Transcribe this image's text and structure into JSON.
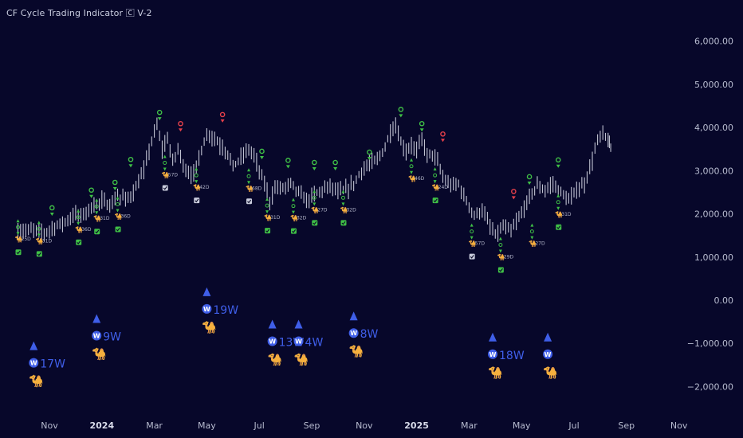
{
  "title": "CF Cycle Trading Indicator 🄲 V-2",
  "colors": {
    "background": "#07072a",
    "price": "#d6d8e6",
    "buy": "#3fbf46",
    "sell": "#e6404a",
    "week": "#3f5ee8",
    "axis_text": "#b8bcd0"
  },
  "chart_data": {
    "type": "line",
    "ylim": [
      -2600,
      6400
    ],
    "y_ticks": [
      {
        "value": 6000,
        "label": "6,000.00"
      },
      {
        "value": 5000,
        "label": "5,000.00"
      },
      {
        "value": 4000,
        "label": "4,000.00"
      },
      {
        "value": 3000,
        "label": "3,000.00"
      },
      {
        "value": 2000,
        "label": "2,000.00"
      },
      {
        "value": 1000,
        "label": "1,000.00"
      },
      {
        "value": 0,
        "label": "0.00"
      },
      {
        "value": -1000,
        "label": "−1,000.00"
      },
      {
        "value": -2000,
        "label": "−2,000.00"
      }
    ],
    "x_ticks": [
      {
        "t": 0,
        "label": "Nov",
        "bold": false
      },
      {
        "t": 2,
        "label": "2024",
        "bold": true
      },
      {
        "t": 4,
        "label": "Mar",
        "bold": false
      },
      {
        "t": 6,
        "label": "May",
        "bold": false
      },
      {
        "t": 8,
        "label": "Jul",
        "bold": false
      },
      {
        "t": 10,
        "label": "Sep",
        "bold": false
      },
      {
        "t": 12,
        "label": "Nov",
        "bold": false
      },
      {
        "t": 14,
        "label": "2025",
        "bold": true
      },
      {
        "t": 16,
        "label": "Mar",
        "bold": false
      },
      {
        "t": 18,
        "label": "May",
        "bold": false
      },
      {
        "t": 20,
        "label": "Jul",
        "bold": false
      },
      {
        "t": 22,
        "label": "Sep",
        "bold": false
      },
      {
        "t": 24,
        "label": "Nov",
        "bold": false
      }
    ],
    "price": [
      [
        -1.2,
        1600
      ],
      [
        -0.6,
        1630
      ],
      [
        -0.2,
        1560
      ],
      [
        0.2,
        1700
      ],
      [
        0.6,
        1820
      ],
      [
        1.0,
        2000
      ],
      [
        1.2,
        1950
      ],
      [
        1.6,
        2150
      ],
      [
        2.0,
        2300
      ],
      [
        2.3,
        2200
      ],
      [
        2.6,
        2400
      ],
      [
        3.0,
        2350
      ],
      [
        3.3,
        2600
      ],
      [
        3.6,
        3000
      ],
      [
        3.9,
        3700
      ],
      [
        4.1,
        4050
      ],
      [
        4.3,
        3500
      ],
      [
        4.5,
        3750
      ],
      [
        4.7,
        3200
      ],
      [
        4.9,
        3500
      ],
      [
        5.2,
        3000
      ],
      [
        5.5,
        2900
      ],
      [
        5.7,
        3300
      ],
      [
        5.9,
        3700
      ],
      [
        6.1,
        3850
      ],
      [
        6.3,
        3750
      ],
      [
        6.5,
        3600
      ],
      [
        6.8,
        3400
      ],
      [
        7.0,
        3100
      ],
      [
        7.3,
        3300
      ],
      [
        7.6,
        3500
      ],
      [
        7.8,
        3350
      ],
      [
        8.0,
        3000
      ],
      [
        8.2,
        2700
      ],
      [
        8.4,
        2300
      ],
      [
        8.6,
        2600
      ],
      [
        8.9,
        2600
      ],
      [
        9.2,
        2700
      ],
      [
        9.5,
        2500
      ],
      [
        9.8,
        2300
      ],
      [
        10.1,
        2450
      ],
      [
        10.4,
        2550
      ],
      [
        10.7,
        2650
      ],
      [
        11.0,
        2500
      ],
      [
        11.3,
        2550
      ],
      [
        11.6,
        2700
      ],
      [
        11.9,
        3000
      ],
      [
        12.2,
        3150
      ],
      [
        12.5,
        3250
      ],
      [
        12.8,
        3550
      ],
      [
        13.0,
        3900
      ],
      [
        13.2,
        4050
      ],
      [
        13.4,
        3650
      ],
      [
        13.6,
        3450
      ],
      [
        13.8,
        3600
      ],
      [
        14.0,
        3450
      ],
      [
        14.2,
        3750
      ],
      [
        14.4,
        3350
      ],
      [
        14.6,
        3400
      ],
      [
        14.8,
        3200
      ],
      [
        15.0,
        2850
      ],
      [
        15.2,
        2700
      ],
      [
        15.4,
        2650
      ],
      [
        15.6,
        2700
      ],
      [
        15.8,
        2400
      ],
      [
        16.0,
        2200
      ],
      [
        16.2,
        1950
      ],
      [
        16.5,
        2100
      ],
      [
        16.8,
        1700
      ],
      [
        17.0,
        1500
      ],
      [
        17.3,
        1700
      ],
      [
        17.6,
        1600
      ],
      [
        17.9,
        1900
      ],
      [
        18.2,
        2250
      ],
      [
        18.4,
        2500
      ],
      [
        18.6,
        2650
      ],
      [
        18.9,
        2550
      ],
      [
        19.2,
        2700
      ],
      [
        19.5,
        2500
      ],
      [
        19.8,
        2300
      ],
      [
        20.1,
        2550
      ],
      [
        20.4,
        2700
      ],
      [
        20.7,
        3250
      ],
      [
        20.9,
        3700
      ],
      [
        21.1,
        3850
      ],
      [
        21.3,
        3700
      ],
      [
        21.4,
        3500
      ]
    ],
    "signals": [
      {
        "t": -1.2,
        "value": 1250,
        "label": "25D",
        "check": "green"
      },
      {
        "t": -0.4,
        "value": 1210,
        "label": "31D",
        "check": "green"
      },
      {
        "t": 1.1,
        "value": 1480,
        "label": "36D",
        "check": "green"
      },
      {
        "t": 1.8,
        "value": 1730,
        "label": "31D",
        "check": "green"
      },
      {
        "t": 2.6,
        "value": 1780,
        "label": "36D",
        "check": "green"
      },
      {
        "t": 4.4,
        "value": 2740,
        "label": "57D",
        "check": "white"
      },
      {
        "t": 5.6,
        "value": 2450,
        "label": "42D",
        "check": "white"
      },
      {
        "t": 7.6,
        "value": 2430,
        "label": "68D",
        "check": "white"
      },
      {
        "t": 8.3,
        "value": 1750,
        "label": "31D",
        "check": "green"
      },
      {
        "t": 9.3,
        "value": 1740,
        "label": "32D",
        "check": "green"
      },
      {
        "t": 10.1,
        "value": 1930,
        "label": "27D",
        "check": "green"
      },
      {
        "t": 11.2,
        "value": 1930,
        "label": "32D",
        "check": "green"
      },
      {
        "t": 13.8,
        "value": 2660,
        "label": "46D",
        "check": "none"
      },
      {
        "t": 14.7,
        "value": 2450,
        "label": "24D",
        "check": "green"
      },
      {
        "t": 16.1,
        "value": 1150,
        "label": "57D",
        "check": "white"
      },
      {
        "t": 17.2,
        "value": 840,
        "label": "29D",
        "check": "green"
      },
      {
        "t": 18.4,
        "value": 1150,
        "label": "27D",
        "check": "none"
      },
      {
        "t": 19.4,
        "value": 1830,
        "label": "31D",
        "check": "green"
      }
    ],
    "buy_markers": [
      {
        "t": 0.1,
        "value": 2140
      },
      {
        "t": 1.6,
        "value": 2550
      },
      {
        "t": 2.5,
        "value": 2730
      },
      {
        "t": 3.1,
        "value": 3260
      },
      {
        "t": 4.2,
        "value": 4350
      },
      {
        "t": 8.1,
        "value": 3450
      },
      {
        "t": 9.1,
        "value": 3240
      },
      {
        "t": 10.1,
        "value": 3190
      },
      {
        "t": 10.9,
        "value": 3190
      },
      {
        "t": 12.2,
        "value": 3430
      },
      {
        "t": 13.4,
        "value": 4420
      },
      {
        "t": 14.2,
        "value": 4090
      },
      {
        "t": 18.3,
        "value": 2860
      },
      {
        "t": 19.4,
        "value": 3250
      }
    ],
    "sell_markers": [
      {
        "t": 5.0,
        "value": 4090
      },
      {
        "t": 6.6,
        "value": 4300
      },
      {
        "t": 15.0,
        "value": 3850
      },
      {
        "t": 17.7,
        "value": 2520
      }
    ],
    "week_markers": [
      {
        "t": -0.6,
        "value": -1450,
        "label": "17W"
      },
      {
        "t": 1.8,
        "value": -820,
        "label": "9W"
      },
      {
        "t": 6.0,
        "value": -200,
        "label": "19W"
      },
      {
        "t": 8.5,
        "value": -950,
        "label": "13W"
      },
      {
        "t": 9.5,
        "value": -950,
        "label": "4W"
      },
      {
        "t": 11.6,
        "value": -760,
        "label": "8W"
      },
      {
        "t": 16.9,
        "value": -1250,
        "label": "18W"
      },
      {
        "t": 19.0,
        "value": -1250,
        "label": ""
      }
    ]
  }
}
